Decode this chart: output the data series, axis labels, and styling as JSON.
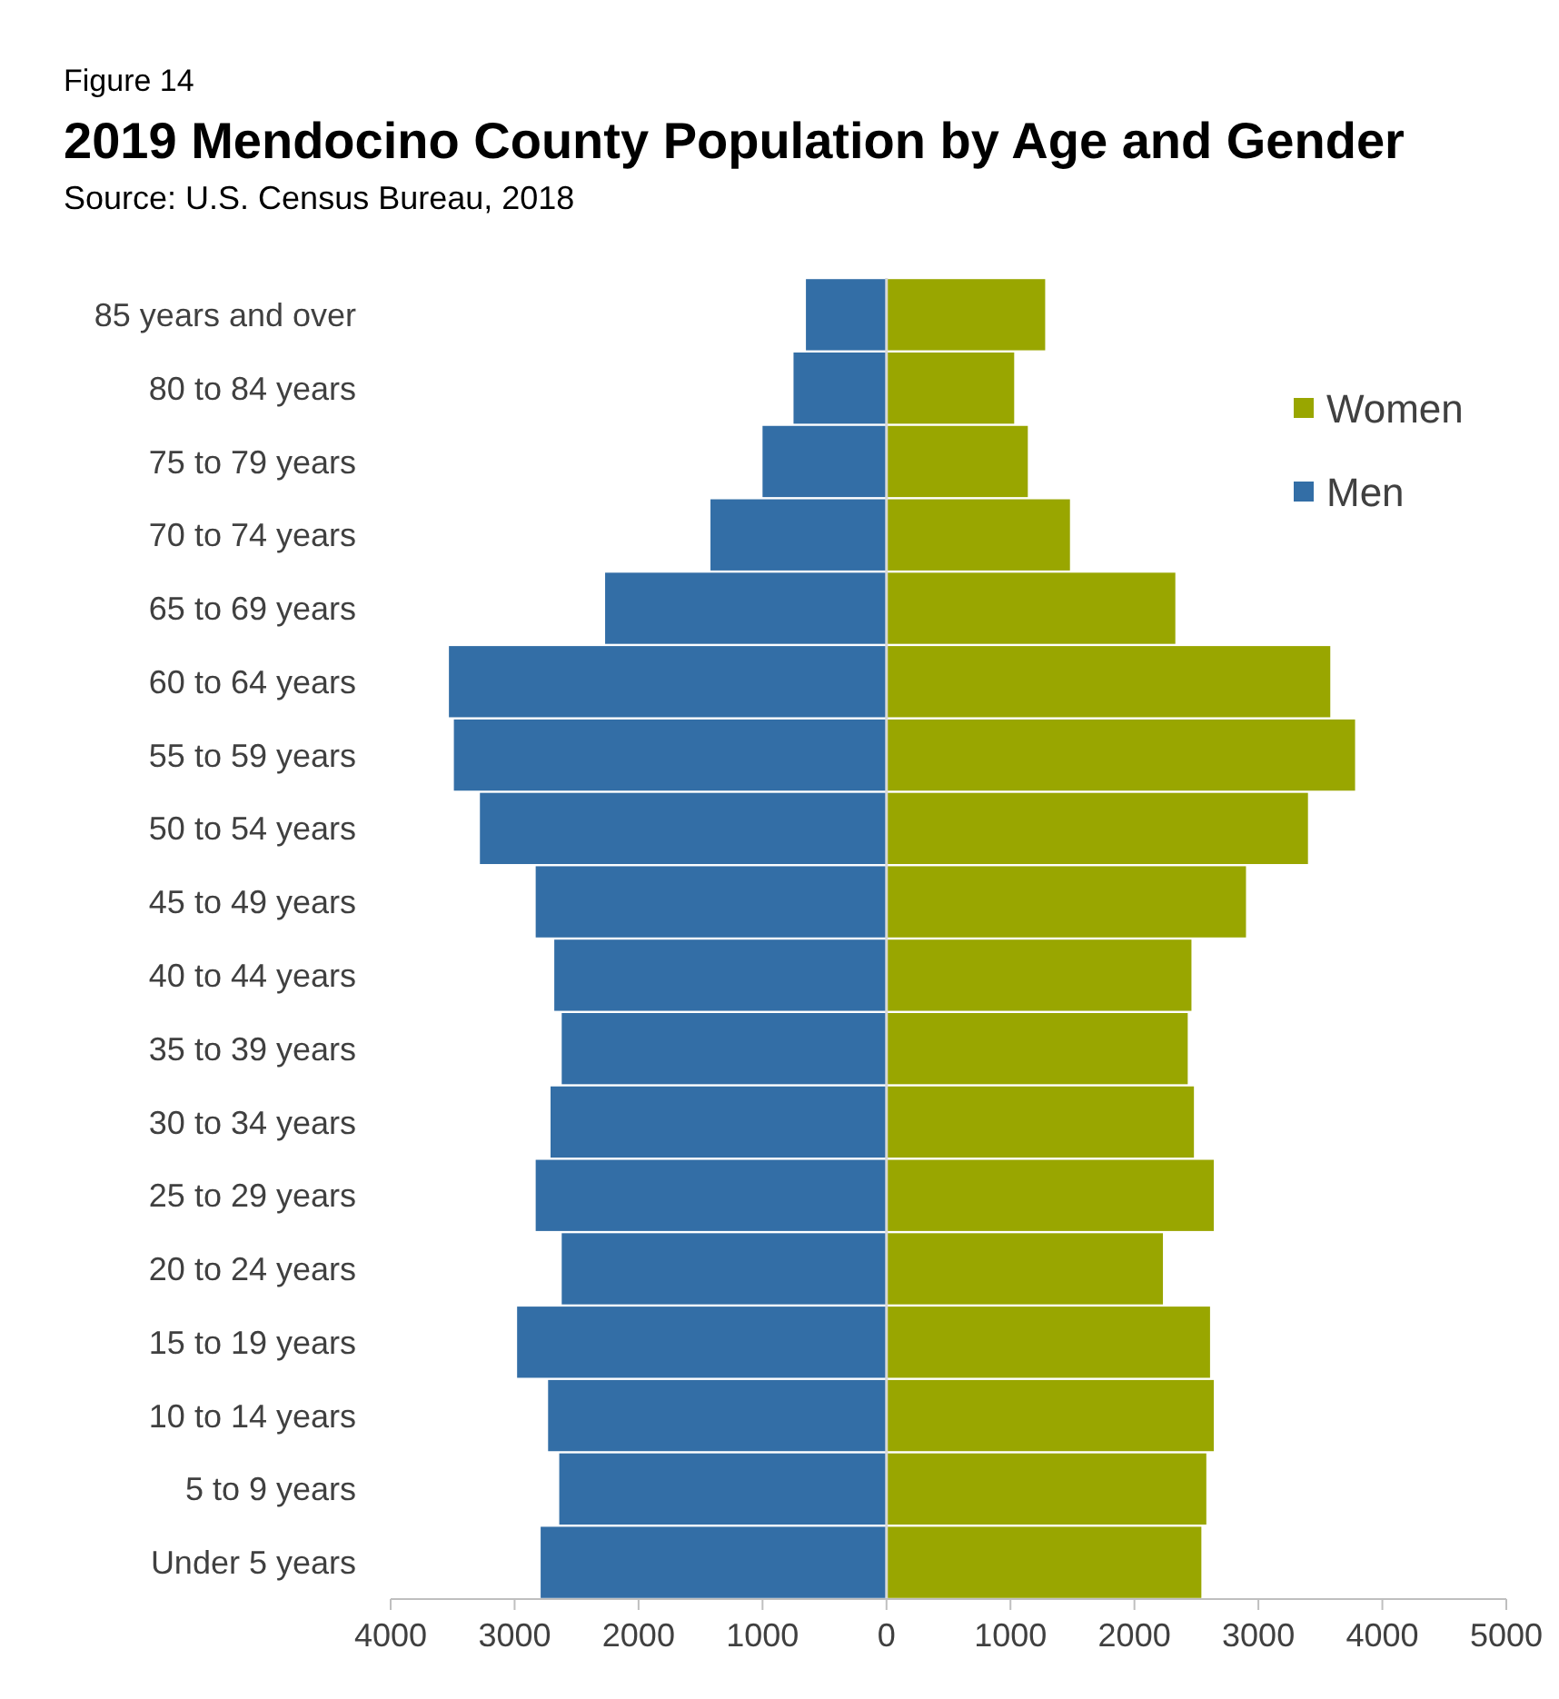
{
  "chart_data": {
    "type": "bar",
    "orientation": "horizontal",
    "stacked": true,
    "ref_lines": [
      {
        "axis": "x",
        "value": 0,
        "color": "#d9d9d9"
      }
    ],
    "title": "2019 Mendocino County Population by Age and Gender",
    "subtitle": "Source: U.S. Census Bureau, 2018",
    "annotations": [
      "Figure 14"
    ],
    "categories": [
      "85 years and over",
      "80 to 84 years",
      "75 to 79 years",
      "70 to 74 years",
      "65 to 69 years",
      "60 to 64 years",
      "55 to 59 years",
      "50 to 54 years",
      "45 to 49 years",
      "40 to 44 years",
      "35 to 39 years",
      "30 to 34 years",
      "25 to 29 years",
      "20 to 24 years",
      "15 to 19 years",
      "10 to 14 years",
      "5 to 9 years",
      "Under 5 years"
    ],
    "series": [
      {
        "name": "Men",
        "color": "#336ea6",
        "values": [
          -650,
          -750,
          -1000,
          -1420,
          -2270,
          -3530,
          -3490,
          -3280,
          -2830,
          -2680,
          -2620,
          -2710,
          -2830,
          -2620,
          -2980,
          -2730,
          -2640,
          -2790
        ]
      },
      {
        "name": "Women",
        "color": "#99a600",
        "values": [
          1280,
          1030,
          1140,
          1480,
          2330,
          3580,
          3780,
          3400,
          2900,
          2460,
          2430,
          2480,
          2640,
          2230,
          2610,
          2640,
          2580,
          2540
        ]
      }
    ],
    "xlim": [
      -4000,
      5000
    ],
    "xticks": [
      {
        "value": -4000,
        "label": "4000"
      },
      {
        "value": -3000,
        "label": "3000"
      },
      {
        "value": -2000,
        "label": "2000"
      },
      {
        "value": -1000,
        "label": "1000"
      },
      0,
      1000,
      2000,
      3000,
      4000,
      5000
    ],
    "grid": false,
    "legend": "top right"
  }
}
